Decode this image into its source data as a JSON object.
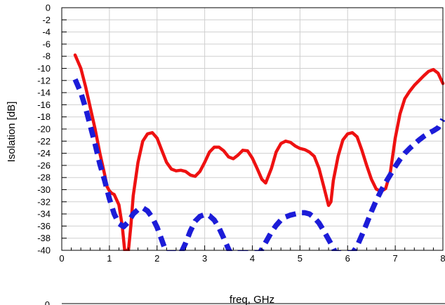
{
  "chart_data": {
    "type": "line",
    "title": "",
    "xlabel": "freq, GHz",
    "ylabel": "Isolation [dB]",
    "xlim": [
      0,
      8
    ],
    "ylim": [
      -40,
      0
    ],
    "x_ticks": [
      0,
      1,
      2,
      3,
      4,
      5,
      6,
      7,
      8
    ],
    "y_ticks": [
      0,
      -2,
      -4,
      -6,
      -8,
      -10,
      -12,
      -14,
      -16,
      -18,
      -20,
      -22,
      -24,
      -26,
      -28,
      -30,
      -32,
      -34,
      -36,
      -38,
      -40
    ],
    "grid": true,
    "legend": "none",
    "series": [
      {
        "color": "#ee1111",
        "style": "solid",
        "points": [
          [
            0.28,
            -7.8
          ],
          [
            0.4,
            -10
          ],
          [
            0.5,
            -13
          ],
          [
            0.6,
            -16.5
          ],
          [
            0.7,
            -20
          ],
          [
            0.8,
            -24
          ],
          [
            0.9,
            -27.5
          ],
          [
            0.95,
            -29.5
          ],
          [
            1.0,
            -30.2
          ],
          [
            1.05,
            -30.6
          ],
          [
            1.1,
            -30.8
          ],
          [
            1.2,
            -32.5
          ],
          [
            1.27,
            -36
          ],
          [
            1.32,
            -40
          ],
          [
            1.4,
            -40
          ],
          [
            1.45,
            -36
          ],
          [
            1.5,
            -31
          ],
          [
            1.6,
            -25.5
          ],
          [
            1.7,
            -22
          ],
          [
            1.8,
            -20.8
          ],
          [
            1.9,
            -20.6
          ],
          [
            2.0,
            -21.5
          ],
          [
            2.1,
            -23.5
          ],
          [
            2.2,
            -25.5
          ],
          [
            2.3,
            -26.6
          ],
          [
            2.4,
            -26.9
          ],
          [
            2.5,
            -26.8
          ],
          [
            2.6,
            -27
          ],
          [
            2.7,
            -27.6
          ],
          [
            2.8,
            -27.8
          ],
          [
            2.9,
            -27
          ],
          [
            3.0,
            -25.5
          ],
          [
            3.1,
            -23.8
          ],
          [
            3.2,
            -23
          ],
          [
            3.3,
            -23
          ],
          [
            3.4,
            -23.6
          ],
          [
            3.5,
            -24.6
          ],
          [
            3.6,
            -24.9
          ],
          [
            3.7,
            -24.3
          ],
          [
            3.8,
            -23.5
          ],
          [
            3.9,
            -23.6
          ],
          [
            4.0,
            -24.8
          ],
          [
            4.1,
            -26.5
          ],
          [
            4.2,
            -28.3
          ],
          [
            4.28,
            -28.9
          ],
          [
            4.4,
            -26.5
          ],
          [
            4.5,
            -23.8
          ],
          [
            4.6,
            -22.4
          ],
          [
            4.7,
            -22
          ],
          [
            4.8,
            -22.2
          ],
          [
            4.9,
            -22.8
          ],
          [
            5.0,
            -23.2
          ],
          [
            5.1,
            -23.4
          ],
          [
            5.2,
            -23.8
          ],
          [
            5.3,
            -24.5
          ],
          [
            5.4,
            -26.5
          ],
          [
            5.5,
            -29.5
          ],
          [
            5.6,
            -32.6
          ],
          [
            5.65,
            -32
          ],
          [
            5.7,
            -28.5
          ],
          [
            5.8,
            -24.5
          ],
          [
            5.9,
            -21.8
          ],
          [
            6.0,
            -20.8
          ],
          [
            6.1,
            -20.6
          ],
          [
            6.2,
            -21.3
          ],
          [
            6.3,
            -23.5
          ],
          [
            6.4,
            -26
          ],
          [
            6.5,
            -28.3
          ],
          [
            6.6,
            -29.9
          ],
          [
            6.7,
            -30.3
          ],
          [
            6.8,
            -29.8
          ],
          [
            6.9,
            -27
          ],
          [
            7.0,
            -21.5
          ],
          [
            7.1,
            -17.5
          ],
          [
            7.2,
            -15
          ],
          [
            7.3,
            -13.8
          ],
          [
            7.4,
            -12.8
          ],
          [
            7.5,
            -12
          ],
          [
            7.6,
            -11.2
          ],
          [
            7.7,
            -10.5
          ],
          [
            7.8,
            -10.2
          ],
          [
            7.9,
            -10.8
          ],
          [
            8.0,
            -12.5
          ]
        ]
      },
      {
        "color": "#1c1cd8",
        "style": "dashed",
        "points": [
          [
            0.28,
            -11.8
          ],
          [
            0.4,
            -14
          ],
          [
            0.5,
            -16.5
          ],
          [
            0.6,
            -19.5
          ],
          [
            0.7,
            -22.5
          ],
          [
            0.8,
            -25.8
          ],
          [
            0.9,
            -28.5
          ],
          [
            1.0,
            -31.5
          ],
          [
            1.1,
            -34
          ],
          [
            1.2,
            -35.6
          ],
          [
            1.3,
            -36.1
          ],
          [
            1.4,
            -35.3
          ],
          [
            1.5,
            -34
          ],
          [
            1.6,
            -33.3
          ],
          [
            1.7,
            -33
          ],
          [
            1.8,
            -33.5
          ],
          [
            1.9,
            -34.6
          ],
          [
            2.0,
            -36.2
          ],
          [
            2.1,
            -38.3
          ],
          [
            2.2,
            -40.5
          ],
          [
            2.5,
            -40.5
          ],
          [
            2.6,
            -38.8
          ],
          [
            2.7,
            -36.8
          ],
          [
            2.8,
            -35.2
          ],
          [
            2.9,
            -34.4
          ],
          [
            3.0,
            -34.1
          ],
          [
            3.1,
            -34.3
          ],
          [
            3.2,
            -35
          ],
          [
            3.3,
            -36.3
          ],
          [
            3.4,
            -38
          ],
          [
            3.5,
            -39.8
          ],
          [
            3.55,
            -40.5
          ],
          [
            4.15,
            -40.5
          ],
          [
            4.2,
            -39.8
          ],
          [
            4.3,
            -38.4
          ],
          [
            4.4,
            -37
          ],
          [
            4.5,
            -35.9
          ],
          [
            4.6,
            -35
          ],
          [
            4.7,
            -34.5
          ],
          [
            4.8,
            -34.2
          ],
          [
            4.9,
            -34
          ],
          [
            5.0,
            -33.8
          ],
          [
            5.1,
            -33.8
          ],
          [
            5.2,
            -34
          ],
          [
            5.3,
            -34.6
          ],
          [
            5.4,
            -35.5
          ],
          [
            5.5,
            -36.8
          ],
          [
            5.6,
            -38.2
          ],
          [
            5.7,
            -39.6
          ],
          [
            5.75,
            -40.5
          ],
          [
            6.1,
            -40.5
          ],
          [
            6.2,
            -39.3
          ],
          [
            6.3,
            -37.5
          ],
          [
            6.4,
            -35.6
          ],
          [
            6.5,
            -33.6
          ],
          [
            6.6,
            -31.8
          ],
          [
            6.7,
            -30.2
          ],
          [
            6.8,
            -28.8
          ],
          [
            6.9,
            -27.5
          ],
          [
            7.0,
            -26.2
          ],
          [
            7.1,
            -25
          ],
          [
            7.2,
            -24
          ],
          [
            7.3,
            -23.2
          ],
          [
            7.4,
            -22.5
          ],
          [
            7.5,
            -21.8
          ],
          [
            7.6,
            -21.2
          ],
          [
            7.7,
            -20.7
          ],
          [
            7.8,
            -20.3
          ],
          [
            7.9,
            -19.8
          ],
          [
            8.0,
            -18.4
          ]
        ]
      }
    ],
    "lower_panel": {
      "visible_y_tick": "0"
    }
  }
}
